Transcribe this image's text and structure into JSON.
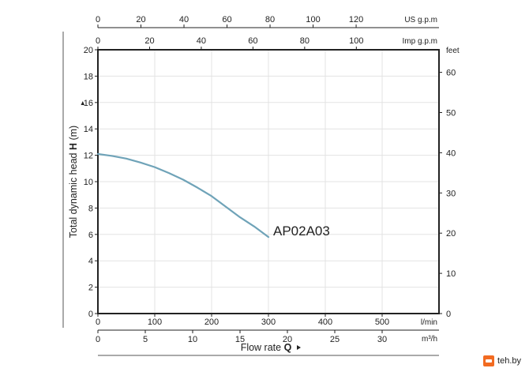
{
  "chart_data": {
    "type": "line",
    "series": [
      {
        "name": "AP02A03",
        "x": [
          0,
          25,
          50,
          75,
          100,
          125,
          150,
          175,
          200,
          225,
          250,
          275,
          300
        ],
        "values": [
          12.1,
          11.95,
          11.75,
          11.45,
          11.1,
          10.65,
          10.15,
          9.55,
          8.9,
          8.1,
          7.3,
          6.6,
          5.8
        ]
      }
    ],
    "xlim": [
      0,
      600
    ],
    "ylim": [
      0,
      20
    ],
    "ylabel_prefix": "Total dynamic head ",
    "ylabel_bold": "H",
    "ylabel_suffix": " (m)",
    "xlabel_prefix": "Flow rate ",
    "xlabel_bold": "Q",
    "grid": true,
    "left_axis": {
      "ticks": [
        "0",
        "2",
        "4",
        "6",
        "8",
        "10",
        "12",
        "14",
        "16",
        "18",
        "20"
      ]
    },
    "right_axis": {
      "unit": "feet",
      "ticks": [
        "0",
        "10",
        "20",
        "30",
        "40",
        "50",
        "60"
      ]
    },
    "bottom_axis_lmin": {
      "unit": "l/min",
      "ticks": [
        "0",
        "100",
        "200",
        "300",
        "400",
        "500"
      ]
    },
    "bottom_axis_m3h": {
      "unit": "m³/h",
      "ticks": [
        "0",
        "5",
        "10",
        "15",
        "20",
        "25",
        "30"
      ]
    },
    "top_axis_us": {
      "unit": "US g.p.m",
      "ticks": [
        "0",
        "20",
        "40",
        "60",
        "80",
        "100",
        "120"
      ]
    },
    "top_axis_imp": {
      "unit": "Imp g.p.m",
      "ticks": [
        "0",
        "20",
        "40",
        "60",
        "80",
        "100"
      ]
    }
  },
  "colors": {
    "curve": "#6fa3b8",
    "frame": "#222222",
    "grid": "#e3e3e3"
  },
  "watermark": {
    "text": "teh.by"
  }
}
